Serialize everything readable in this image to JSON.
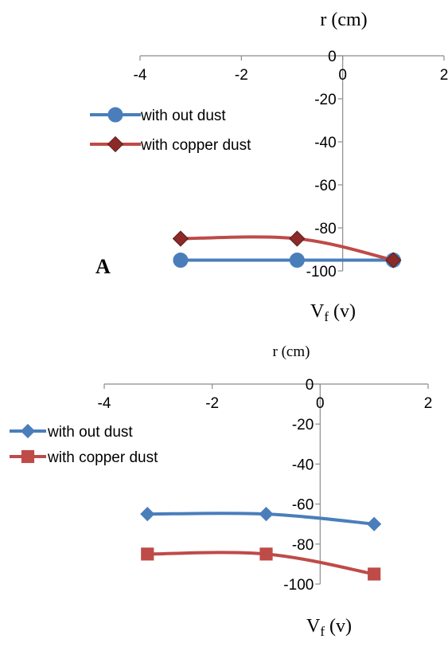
{
  "chart_data": [
    {
      "type": "line",
      "panel_label": "A",
      "xlabel": "r (cm)",
      "ylabel": "V",
      "ylabel_sub": "f",
      "ylabel_unit": " (v)",
      "xlim": [
        -4,
        2
      ],
      "ylim": [
        -100,
        0
      ],
      "xticks": [
        -4,
        -2,
        0,
        2
      ],
      "yticks": [
        0,
        -20,
        -40,
        -60,
        -80,
        -100
      ],
      "grid": false,
      "legend_position": "top-left",
      "series": [
        {
          "name": "with out dust",
          "color": "#4a7ebb",
          "marker": "circle",
          "x": [
            -3.2,
            -0.9,
            1.0
          ],
          "y": [
            -95,
            -95,
            -95
          ]
        },
        {
          "name": "with copper dust",
          "color": "#be4b48",
          "marker": "diamond",
          "marker_fill": "#8c2a28",
          "x": [
            -3.2,
            -0.9,
            1.0
          ],
          "y": [
            -85,
            -85,
            -95
          ]
        }
      ]
    },
    {
      "type": "line",
      "panel_label": "",
      "xlabel": "r (cm)",
      "ylabel": "V",
      "ylabel_sub": "f",
      "ylabel_unit": " (v)",
      "xlim": [
        -4,
        2
      ],
      "ylim": [
        -100,
        0
      ],
      "xticks": [
        -4,
        -2,
        0,
        2
      ],
      "yticks": [
        0,
        -20,
        -40,
        -60,
        -80,
        -100
      ],
      "grid": false,
      "legend_position": "left",
      "series": [
        {
          "name": "with out dust",
          "color": "#4a7ebb",
          "marker": "diamond",
          "x": [
            -3.2,
            -1.0,
            1.0
          ],
          "y": [
            -65,
            -65,
            -70
          ]
        },
        {
          "name": "with copper dust",
          "color": "#be4b48",
          "marker": "square",
          "x": [
            -3.2,
            -1.0,
            1.0
          ],
          "y": [
            -85,
            -85,
            -95
          ]
        }
      ]
    }
  ]
}
